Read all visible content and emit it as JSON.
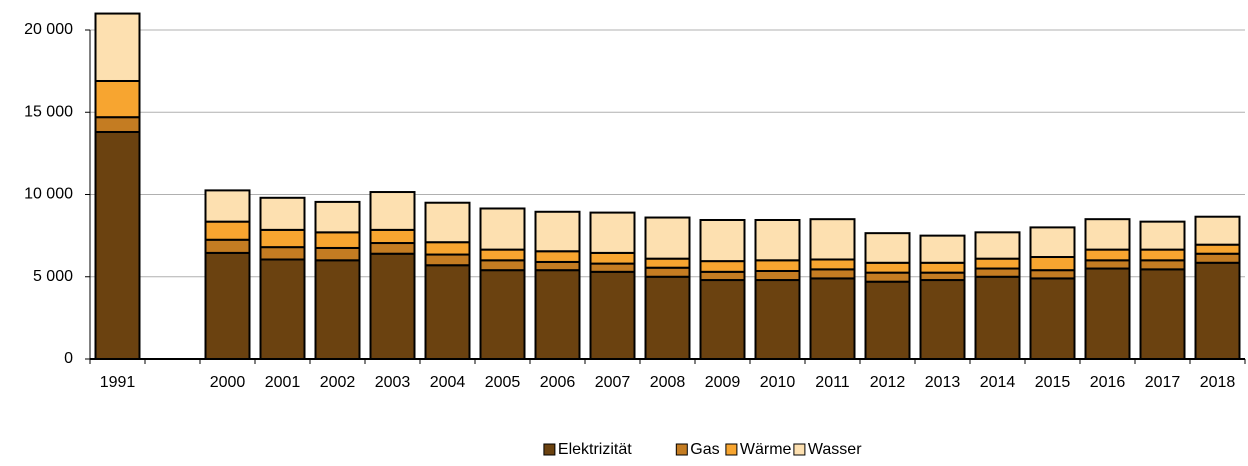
{
  "chart_data": {
    "type": "stacked_bar",
    "categories": [
      "1991",
      null,
      "2000",
      "2001",
      "2002",
      "2003",
      "2004",
      "2005",
      "2006",
      "2007",
      "2008",
      "2009",
      "2010",
      "2011",
      "2012",
      "2013",
      "2014",
      "2015",
      "2016",
      "2017",
      "2018"
    ],
    "series": [
      {
        "name": "Elektrizität",
        "color": "#6b4210",
        "values": [
          13800,
          null,
          6450,
          6050,
          6000,
          6400,
          5700,
          5400,
          5400,
          5300,
          5000,
          4800,
          4800,
          4900,
          4700,
          4800,
          5000,
          4900,
          5500,
          5450,
          5850
        ]
      },
      {
        "name": "Gas",
        "color": "#c47c22",
        "values": [
          900,
          null,
          800,
          750,
          750,
          650,
          650,
          600,
          500,
          500,
          550,
          500,
          550,
          550,
          550,
          450,
          500,
          500,
          500,
          550,
          550
        ]
      },
      {
        "name": "Wärme",
        "color": "#f7a530",
        "values": [
          2200,
          null,
          1100,
          1050,
          950,
          800,
          750,
          650,
          650,
          650,
          550,
          650,
          650,
          600,
          600,
          600,
          600,
          800,
          650,
          650,
          550
        ]
      },
      {
        "name": "Wasser",
        "color": "#fde0b0",
        "values": [
          4100,
          null,
          1900,
          1950,
          1850,
          2300,
          2400,
          2500,
          2400,
          2450,
          2500,
          2500,
          2450,
          2450,
          1800,
          1650,
          1600,
          1800,
          1850,
          1700,
          1700
        ]
      }
    ],
    "ylim": [
      0,
      20000
    ],
    "yticks": [
      0,
      {
        "value": 5000,
        "label": "5 000"
      },
      {
        "value": 10000,
        "label": "10 000"
      },
      {
        "value": 15000,
        "label": "15 000"
      },
      {
        "value": 20000,
        "label": "20 000"
      }
    ],
    "grid": true,
    "legend": "bottom"
  }
}
